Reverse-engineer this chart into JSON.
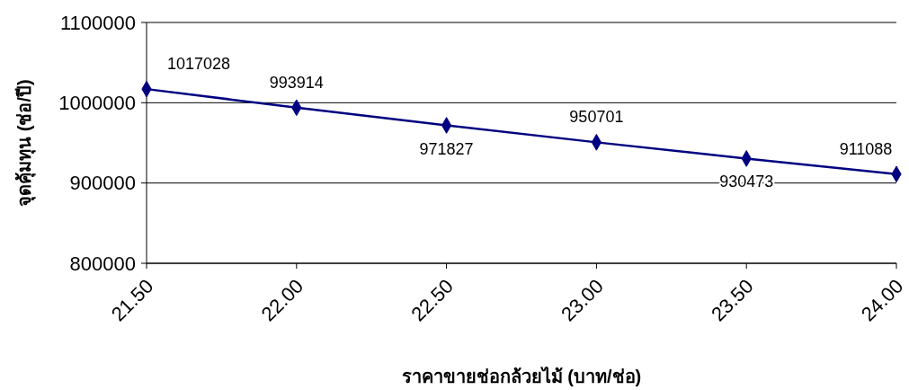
{
  "chart_data": {
    "type": "line",
    "xlabel": "ราคาขายช่อกล้วยไม้ (บาท/ช่อ)",
    "ylabel": "จุดคุ้มทุน (ช่อ/ปี)",
    "x": [
      21.5,
      22,
      22.5,
      23,
      23.5,
      24
    ],
    "series": [
      {
        "color": "#000080",
        "values": [
          1017028,
          993914,
          971827,
          950701,
          930473,
          911088
        ]
      }
    ],
    "xlim": [
      21.5,
      24
    ],
    "xticks": [
      {
        "value": 21.5,
        "label": "21.50"
      },
      {
        "value": 22,
        "label": "22.00"
      },
      {
        "value": 22.5,
        "label": "22.50"
      },
      {
        "value": 23,
        "label": "23.00"
      },
      {
        "value": 23.5,
        "label": "23.50"
      },
      {
        "value": 24,
        "label": "24.00"
      }
    ],
    "ylim": [
      800000,
      1100000
    ],
    "yticks": [
      800000,
      900000,
      1000000,
      1100000
    ],
    "grid": "y",
    "marker": "diamond",
    "line_style": "solid",
    "data_labels": true
  }
}
